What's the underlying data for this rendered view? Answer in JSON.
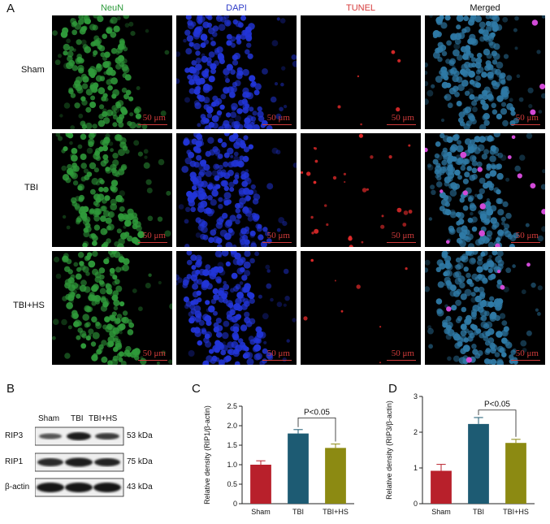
{
  "panel_a": {
    "letter": "A",
    "columns": [
      {
        "label": "NeuN",
        "color": "#2e9b3c"
      },
      {
        "label": "DAPI",
        "color": "#2f3cc8"
      },
      {
        "label": "TUNEL",
        "color": "#d63a3a"
      },
      {
        "label": "Merged",
        "color": "#111111"
      }
    ],
    "rows": [
      "Sham",
      "TBI",
      "TBI+HS"
    ],
    "scale_bar": "50 μm"
  },
  "panel_b": {
    "letter": "B",
    "lanes": [
      "Sham",
      "TBI",
      "TBI+HS"
    ],
    "bands": [
      {
        "name": "RIP3",
        "kda": "53 kDa"
      },
      {
        "name": "RIP1",
        "kda": "75 kDa"
      },
      {
        "name": "β-actin",
        "kda": "43 kDa"
      }
    ]
  },
  "chart_data": [
    {
      "type": "bar",
      "panel": "C",
      "categories": [
        "Sham",
        "TBI",
        "TBI+HS"
      ],
      "values": [
        1.0,
        1.8,
        1.43
      ],
      "errors": [
        0.1,
        0.1,
        0.1
      ],
      "colors": [
        "#b8202b",
        "#1d5b73",
        "#8c8a12"
      ],
      "ylabel": "Relative density (RIP1/β-actin)",
      "ylim": [
        0,
        2.5
      ],
      "yticks": [
        "0",
        "0.5",
        "1.0",
        "1.5",
        "2.0",
        "2.5"
      ],
      "annotation": "P<0.05"
    },
    {
      "type": "bar",
      "panel": "D",
      "categories": [
        "Sham",
        "TBI",
        "TBI+HS"
      ],
      "values": [
        0.92,
        2.23,
        1.7
      ],
      "errors": [
        0.18,
        0.18,
        0.1
      ],
      "colors": [
        "#b8202b",
        "#1d5b73",
        "#8c8a12"
      ],
      "ylabel": "Relative density (RIP3/β-actin)",
      "ylim": [
        0,
        3
      ],
      "yticks": [
        "0",
        "1",
        "2",
        "3"
      ],
      "annotation": "P<0.05"
    }
  ]
}
